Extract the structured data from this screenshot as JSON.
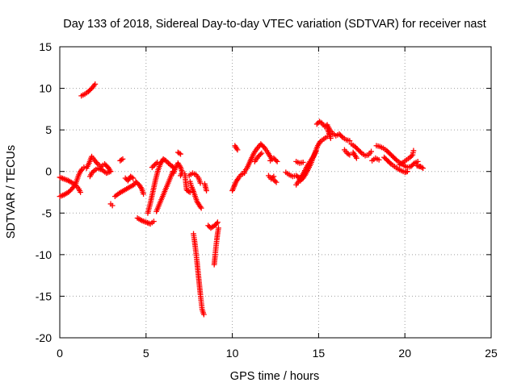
{
  "chart_data": {
    "type": "scatter",
    "title": "Day 133 of 2018, Sidereal Day-to-day VTEC variation (SDTVAR) for receiver nast",
    "xlabel": "GPS time / hours",
    "ylabel": "SDTVAR / TECUs",
    "xlim": [
      0,
      25
    ],
    "ylim": [
      -20,
      15
    ],
    "xticks": [
      "0",
      "5",
      "10",
      "15",
      "20",
      "25"
    ],
    "xtick_values": [
      0,
      5,
      10,
      15,
      20,
      25
    ],
    "yticks": [
      "15",
      "10",
      "5",
      "0",
      "-5",
      "-10",
      "-15",
      "-20"
    ],
    "ytick_values": [
      15,
      10,
      5,
      0,
      -5,
      -10,
      -15,
      -20
    ],
    "grid": true,
    "marker": "plus",
    "series_color": "#ff0000",
    "segments": [
      [
        [
          0.0,
          -3.0
        ],
        [
          0.25,
          -2.8
        ],
        [
          0.5,
          -2.5
        ],
        [
          0.7,
          -2.1
        ],
        [
          0.9,
          -1.6
        ],
        [
          1.0,
          -1.0
        ],
        [
          1.1,
          -0.4
        ],
        [
          1.2,
          0.0
        ],
        [
          1.3,
          0.3
        ],
        [
          1.4,
          0.5
        ]
      ],
      [
        [
          0.0,
          -0.7
        ],
        [
          0.25,
          -0.9
        ],
        [
          0.5,
          -1.1
        ],
        [
          0.75,
          -1.4
        ],
        [
          0.95,
          -1.7
        ],
        [
          1.1,
          -2.1
        ],
        [
          1.2,
          -2.5
        ]
      ],
      [
        [
          1.25,
          9.1
        ],
        [
          1.45,
          9.3
        ],
        [
          1.65,
          9.6
        ],
        [
          1.85,
          10.0
        ],
        [
          2.05,
          10.5
        ]
      ],
      [
        [
          1.55,
          0.4
        ],
        [
          1.7,
          1.0
        ],
        [
          1.85,
          1.8
        ],
        [
          2.0,
          1.4
        ],
        [
          2.2,
          0.9
        ],
        [
          2.4,
          0.6
        ],
        [
          2.6,
          0.9
        ],
        [
          2.8,
          0.5
        ],
        [
          2.95,
          0.0
        ],
        [
          2.7,
          -0.2
        ],
        [
          2.45,
          0.2
        ],
        [
          2.2,
          0.4
        ],
        [
          2.0,
          0.1
        ],
        [
          1.85,
          -0.2
        ],
        [
          1.75,
          -0.6
        ]
      ],
      [
        [
          2.95,
          -3.9
        ],
        [
          3.05,
          -4.1
        ]
      ],
      [
        [
          3.2,
          -3.0
        ],
        [
          3.45,
          -2.6
        ],
        [
          3.7,
          -2.3
        ],
        [
          3.95,
          -2.0
        ],
        [
          4.2,
          -1.7
        ],
        [
          4.35,
          -1.5
        ]
      ],
      [
        [
          3.5,
          1.3
        ],
        [
          3.65,
          1.5
        ]
      ],
      [
        [
          3.8,
          -0.8
        ],
        [
          3.95,
          -1.1
        ],
        [
          4.1,
          -0.6
        ],
        [
          4.25,
          -0.8
        ]
      ],
      [
        [
          4.4,
          -1.2
        ],
        [
          4.6,
          -1.6
        ],
        [
          4.75,
          -2.1
        ],
        [
          4.85,
          -2.7
        ]
      ],
      [
        [
          4.5,
          -5.6
        ],
        [
          4.75,
          -5.9
        ],
        [
          5.0,
          -6.1
        ],
        [
          5.25,
          -6.3
        ],
        [
          5.45,
          -6.0
        ]
      ],
      [
        [
          5.1,
          -5.0
        ],
        [
          5.25,
          -3.8
        ],
        [
          5.4,
          -2.4
        ],
        [
          5.55,
          -1.0
        ],
        [
          5.7,
          0.2
        ],
        [
          5.85,
          1.0
        ],
        [
          6.0,
          1.5
        ],
        [
          6.15,
          1.3
        ],
        [
          6.3,
          1.0
        ],
        [
          6.45,
          0.7
        ],
        [
          6.6,
          0.5
        ]
      ],
      [
        [
          5.35,
          0.5
        ],
        [
          5.5,
          0.8
        ],
        [
          5.65,
          1.1
        ]
      ],
      [
        [
          5.6,
          -4.8
        ],
        [
          5.8,
          -3.8
        ],
        [
          6.0,
          -2.8
        ],
        [
          6.2,
          -1.8
        ],
        [
          6.4,
          -0.8
        ],
        [
          6.55,
          0.0
        ]
      ],
      [
        [
          6.6,
          -0.2
        ],
        [
          6.7,
          0.4
        ],
        [
          6.85,
          1.0
        ],
        [
          7.0,
          0.5
        ],
        [
          7.1,
          -0.1
        ],
        [
          7.0,
          -0.5
        ]
      ],
      [
        [
          6.85,
          2.3
        ],
        [
          7.0,
          2.1
        ]
      ],
      [
        [
          7.25,
          -0.3
        ],
        [
          7.35,
          -2.2
        ]
      ],
      [
        [
          7.5,
          -0.5
        ],
        [
          7.7,
          -0.2
        ],
        [
          7.9,
          -0.4
        ],
        [
          8.05,
          -0.8
        ],
        [
          8.15,
          -1.4
        ]
      ],
      [
        [
          7.55,
          -1.2
        ],
        [
          7.65,
          -1.9
        ],
        [
          7.75,
          -2.4
        ],
        [
          7.85,
          -3.0
        ],
        [
          7.95,
          -3.6
        ],
        [
          8.1,
          -4.1
        ],
        [
          8.2,
          -4.4
        ]
      ],
      [
        [
          7.4,
          -2.3
        ],
        [
          7.55,
          -2.5
        ]
      ],
      [
        [
          7.75,
          -7.5
        ],
        [
          7.8,
          -8.2
        ],
        [
          7.85,
          -9.0
        ],
        [
          7.9,
          -9.9
        ],
        [
          7.95,
          -10.8
        ],
        [
          8.0,
          -11.8
        ],
        [
          8.05,
          -12.8
        ],
        [
          8.1,
          -13.8
        ],
        [
          8.15,
          -14.8
        ],
        [
          8.2,
          -15.7
        ],
        [
          8.25,
          -16.6
        ],
        [
          8.35,
          -17.2
        ]
      ],
      [
        [
          8.4,
          -1.5
        ],
        [
          8.5,
          -2.3
        ]
      ],
      [
        [
          8.6,
          -6.5
        ],
        [
          8.75,
          -6.8
        ],
        [
          8.9,
          -6.6
        ],
        [
          9.05,
          -6.4
        ],
        [
          9.15,
          -6.1
        ]
      ],
      [
        [
          8.95,
          -11.2
        ],
        [
          9.0,
          -10.2
        ],
        [
          9.05,
          -9.1
        ],
        [
          9.1,
          -8.2
        ],
        [
          9.15,
          -7.4
        ],
        [
          9.2,
          -6.8
        ]
      ],
      [
        [
          10.0,
          -2.3
        ],
        [
          10.1,
          -1.8
        ],
        [
          10.2,
          -1.3
        ],
        [
          10.35,
          -0.8
        ],
        [
          10.5,
          -0.4
        ],
        [
          10.7,
          -0.2
        ]
      ],
      [
        [
          10.15,
          3.1
        ],
        [
          10.3,
          2.6
        ]
      ],
      [
        [
          10.7,
          0.0
        ],
        [
          10.85,
          0.4
        ],
        [
          11.05,
          1.3
        ],
        [
          11.25,
          2.2
        ],
        [
          11.45,
          2.8
        ],
        [
          11.65,
          3.3
        ],
        [
          11.85,
          2.9
        ],
        [
          12.05,
          2.3
        ],
        [
          12.25,
          1.6
        ]
      ],
      [
        [
          11.3,
          1.2
        ],
        [
          11.5,
          1.8
        ],
        [
          11.7,
          2.2
        ]
      ],
      [
        [
          12.1,
          -0.5
        ],
        [
          12.25,
          -0.9
        ],
        [
          12.4,
          -0.6
        ]
      ],
      [
        [
          12.2,
          1.3
        ],
        [
          12.4,
          1.6
        ],
        [
          12.6,
          1.2
        ]
      ],
      [
        [
          12.4,
          -1.0
        ],
        [
          12.55,
          -1.3
        ]
      ],
      [
        [
          13.1,
          -0.1
        ],
        [
          13.3,
          -0.4
        ],
        [
          13.5,
          -0.6
        ],
        [
          13.7,
          -0.5
        ],
        [
          13.85,
          -0.7
        ],
        [
          13.95,
          -1.1
        ],
        [
          14.1,
          -0.8
        ],
        [
          14.25,
          -0.3
        ],
        [
          14.4,
          0.3
        ],
        [
          14.55,
          0.9
        ],
        [
          14.65,
          1.5
        ],
        [
          14.8,
          2.3
        ],
        [
          14.95,
          3.1
        ],
        [
          15.1,
          3.6
        ],
        [
          15.3,
          3.9
        ],
        [
          15.5,
          4.2
        ]
      ],
      [
        [
          13.7,
          -1.6
        ],
        [
          13.9,
          -1.0
        ],
        [
          14.1,
          -0.3
        ],
        [
          14.3,
          0.5
        ],
        [
          14.5,
          1.2
        ],
        [
          14.7,
          1.8
        ],
        [
          14.85,
          2.4
        ]
      ],
      [
        [
          13.7,
          1.2
        ],
        [
          13.9,
          1.0
        ],
        [
          14.1,
          1.1
        ]
      ],
      [
        [
          14.9,
          5.7
        ],
        [
          15.05,
          6.0
        ],
        [
          15.2,
          5.8
        ],
        [
          15.35,
          5.4
        ],
        [
          15.5,
          5.6
        ],
        [
          15.65,
          5.0
        ],
        [
          15.8,
          4.6
        ],
        [
          16.0,
          4.3
        ],
        [
          16.2,
          4.5
        ],
        [
          16.4,
          4.1
        ],
        [
          16.6,
          3.8
        ],
        [
          16.8,
          3.7
        ]
      ],
      [
        [
          15.5,
          5.2
        ],
        [
          15.6,
          4.6
        ],
        [
          15.7,
          4.0
        ]
      ],
      [
        [
          16.5,
          2.6
        ],
        [
          16.65,
          2.2
        ],
        [
          16.8,
          2.0
        ]
      ],
      [
        [
          16.9,
          3.3
        ],
        [
          17.1,
          3.0
        ],
        [
          17.3,
          2.6
        ],
        [
          17.5,
          2.2
        ],
        [
          17.7,
          1.9
        ],
        [
          17.9,
          2.0
        ],
        [
          18.05,
          2.4
        ]
      ],
      [
        [
          17.0,
          2.3
        ],
        [
          17.2,
          1.6
        ]
      ],
      [
        [
          18.1,
          1.3
        ],
        [
          18.3,
          1.6
        ],
        [
          18.5,
          1.4
        ]
      ],
      [
        [
          18.35,
          3.1
        ],
        [
          18.55,
          3.0
        ],
        [
          18.75,
          2.8
        ],
        [
          18.95,
          2.5
        ],
        [
          19.15,
          2.1
        ],
        [
          19.35,
          1.7
        ],
        [
          19.55,
          1.3
        ],
        [
          19.75,
          1.0
        ],
        [
          19.95,
          0.7
        ],
        [
          20.15,
          0.5
        ],
        [
          20.35,
          0.6
        ],
        [
          20.55,
          1.0
        ],
        [
          20.75,
          1.2
        ]
      ],
      [
        [
          18.8,
          1.7
        ],
        [
          19.0,
          1.3
        ],
        [
          19.2,
          0.9
        ],
        [
          19.4,
          0.6
        ],
        [
          19.6,
          0.3
        ],
        [
          19.8,
          0.1
        ],
        [
          20.0,
          -0.1
        ],
        [
          20.15,
          0.0
        ]
      ],
      [
        [
          19.7,
          0.8
        ],
        [
          19.9,
          1.1
        ],
        [
          20.1,
          1.4
        ],
        [
          20.3,
          1.7
        ],
        [
          20.45,
          2.0
        ],
        [
          20.5,
          2.5
        ]
      ],
      [
        [
          20.7,
          0.7
        ],
        [
          20.85,
          0.6
        ]
      ],
      [
        [
          20.9,
          0.6
        ],
        [
          21.05,
          0.4
        ]
      ]
    ]
  }
}
